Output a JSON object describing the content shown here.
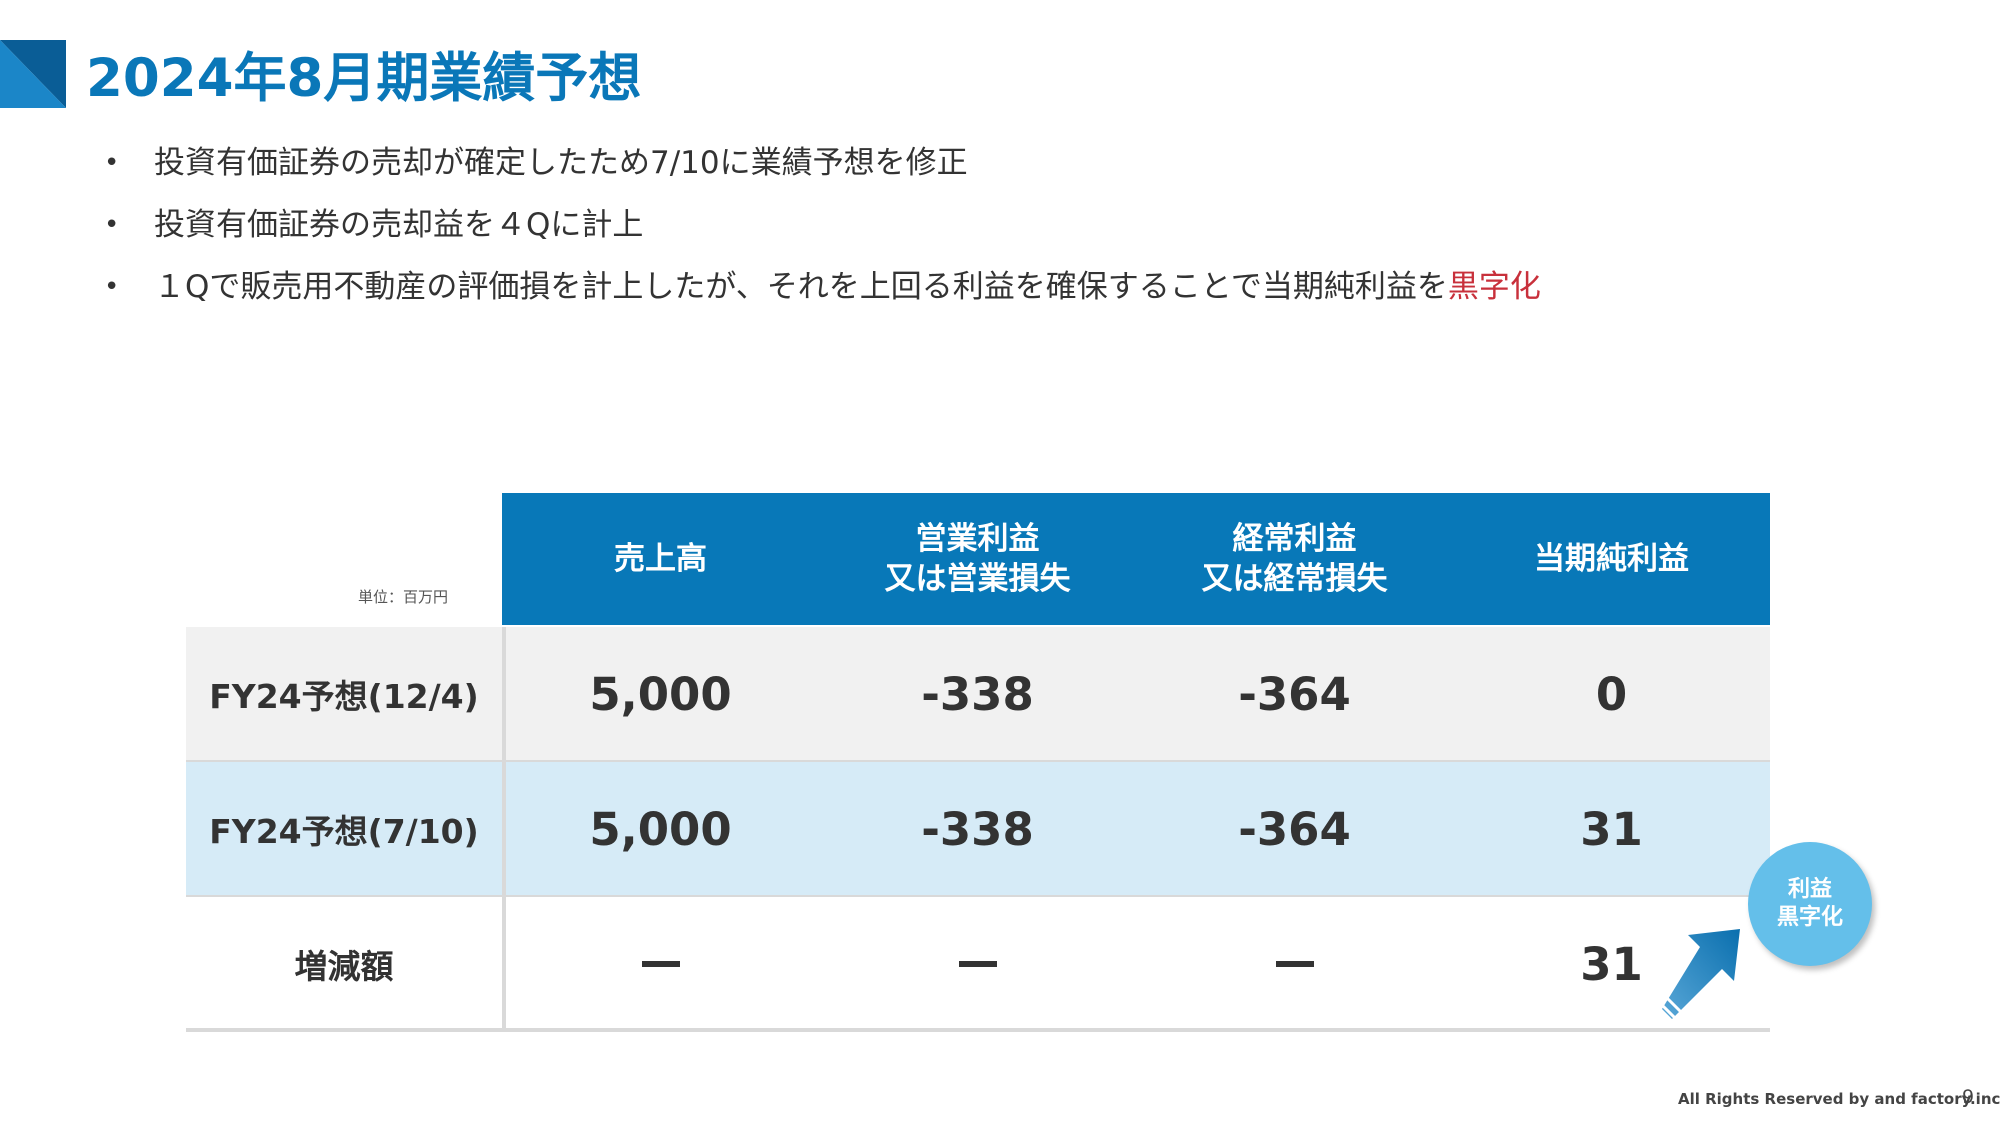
{
  "title": "2024年8月期業績予想",
  "bullets": [
    {
      "text": "投資有価証券の売却が確定したため7/10に業績予想を修正"
    },
    {
      "text": "投資有価証券の売却益を４Qに計上"
    },
    {
      "text": "１Qで販売用不動産の評価損を計上したが、それを上回る利益を確保することで当期純利益を",
      "highlight": "黒字化"
    }
  ],
  "table": {
    "unit": "単位：百万円",
    "headers": [
      {
        "line1": "売上高",
        "line2": ""
      },
      {
        "line1": "営業利益",
        "line2": "又は営業損失"
      },
      {
        "line1": "経常利益",
        "line2": "又は経常損失"
      },
      {
        "line1": "当期純利益",
        "line2": ""
      }
    ],
    "rows": [
      {
        "label": "FY24予想(12/4)",
        "values": [
          "5,000",
          "-338",
          "-364",
          "0"
        ]
      },
      {
        "label": "FY24予想(7/10)",
        "values": [
          "5,000",
          "-338",
          "-364",
          "31"
        ]
      },
      {
        "label": "増減額",
        "values": [
          "―",
          "―",
          "―",
          "31"
        ]
      }
    ]
  },
  "badge": {
    "line1": "利益",
    "line2": "黒字化"
  },
  "colors": {
    "accent": "#0a77b8",
    "header_bg": "#0878b8",
    "row_gray": "#f1f1f1",
    "row_blue": "#d6ebf7",
    "highlight": "#c8303b",
    "badge": "#64bfea"
  },
  "footer": {
    "copyright": "All Rights Reserved by and factory.inc",
    "page": "9"
  }
}
